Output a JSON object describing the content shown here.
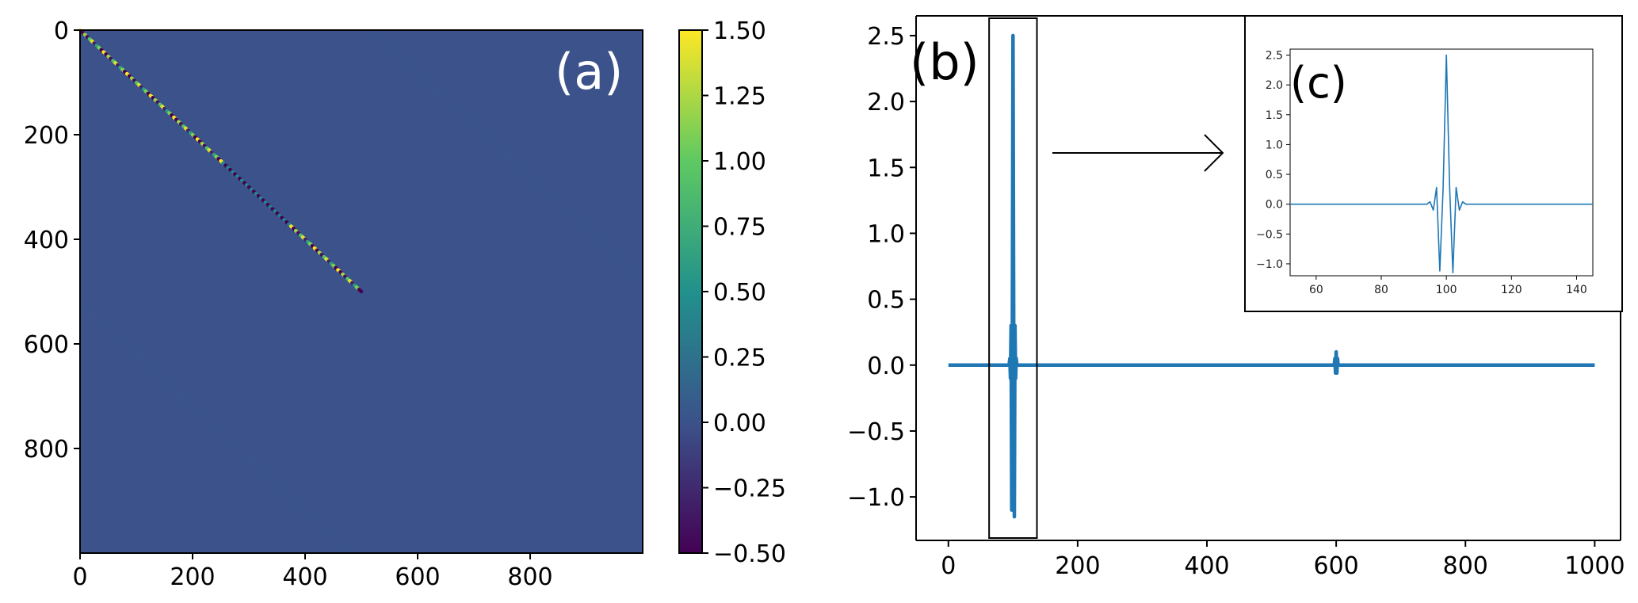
{
  "chart_data": [
    {
      "type": "heatmap",
      "panel_label": "(a)",
      "xlim": [
        0,
        1000
      ],
      "ylim": [
        1000,
        0
      ],
      "x_ticks": [
        0,
        200,
        400,
        600,
        800
      ],
      "y_ticks": [
        0,
        200,
        400,
        600,
        800
      ],
      "x_tick_labels": [
        "0",
        "200",
        "400",
        "600",
        "800"
      ],
      "y_tick_labels": [
        "0",
        "200",
        "400",
        "600",
        "800"
      ],
      "background_value": 0.0,
      "features": [
        {
          "kind": "strong-diagonal",
          "from": [
            0,
            0
          ],
          "to": [
            500,
            500
          ],
          "value_range": [
            -0.5,
            1.5
          ]
        },
        {
          "kind": "faint-diagonal",
          "from": [
            520,
            0
          ],
          "to": [
            1000,
            480
          ],
          "value": 0.05
        },
        {
          "kind": "faint-diagonal",
          "from": [
            0,
            520
          ],
          "to": [
            480,
            1000
          ],
          "value": 0.05
        }
      ],
      "colorbar": {
        "min": -0.5,
        "max": 1.5,
        "ticks": [
          1.5,
          1.25,
          1.0,
          0.75,
          0.5,
          0.25,
          0.0,
          -0.25,
          -0.5
        ],
        "tick_labels": [
          "1.50",
          "1.25",
          "1.00",
          "0.75",
          "0.50",
          "0.25",
          "0.00",
          "−0.25",
          "−0.50"
        ],
        "colormap": "viridis",
        "colors": [
          "#440154",
          "#3b528b",
          "#21918c",
          "#5ec962",
          "#fde725"
        ]
      },
      "grid": false
    },
    {
      "type": "line",
      "panel_label": "(b)",
      "xlim": [
        -50,
        1040
      ],
      "ylim": [
        -1.33,
        2.65
      ],
      "x_ticks": [
        0,
        200,
        400,
        600,
        800,
        1000
      ],
      "y_ticks": [
        2.5,
        2.0,
        1.5,
        1.0,
        0.5,
        0.0,
        -0.5,
        -1.0
      ],
      "x_tick_labels": [
        "0",
        "200",
        "400",
        "600",
        "800",
        "1000"
      ],
      "y_tick_labels": [
        "2.5",
        "2.0",
        "1.5",
        "1.0",
        "0.5",
        "0.0",
        "−0.5",
        "−1.0"
      ],
      "line_color": "#1f77b4",
      "series": [
        {
          "x": [
            0,
            94,
            95,
            96,
            97,
            98,
            99,
            100,
            101,
            102,
            103,
            104,
            105,
            106,
            597,
            598,
            599,
            600,
            601,
            602,
            603,
            1000
          ],
          "y": [
            0,
            0,
            0.05,
            -0.1,
            0.3,
            -1.1,
            0.3,
            2.5,
            0.3,
            -1.15,
            0.3,
            -0.1,
            0.05,
            0,
            0,
            0.05,
            -0.06,
            0.1,
            -0.06,
            0.05,
            0,
            0
          ]
        }
      ],
      "zoom_box_x": [
        63,
        137
      ],
      "grid": false
    },
    {
      "type": "line",
      "panel_label": "(c)",
      "xlim": [
        52,
        145
      ],
      "ylim": [
        -1.2,
        2.6
      ],
      "x_ticks": [
        60,
        80,
        100,
        120,
        140
      ],
      "y_ticks": [
        2.5,
        2.0,
        1.5,
        1.0,
        0.5,
        0.0,
        -0.5,
        -1.0
      ],
      "x_tick_labels": [
        "60",
        "80",
        "100",
        "120",
        "140"
      ],
      "y_tick_labels": [
        "2.5",
        "2.0",
        "1.5",
        "1.0",
        "0.5",
        "0.0",
        "−0.5",
        "−1.0"
      ],
      "line_color": "#1f77b4",
      "series": [
        {
          "x": [
            52,
            94,
            95,
            96,
            97,
            98,
            99,
            100,
            101,
            102,
            103,
            104,
            105,
            106,
            145
          ],
          "y": [
            0,
            0,
            0.04,
            -0.1,
            0.28,
            -1.12,
            0.28,
            2.5,
            0.28,
            -1.15,
            0.28,
            -0.1,
            0.04,
            0,
            0
          ]
        }
      ],
      "grid": false
    }
  ]
}
